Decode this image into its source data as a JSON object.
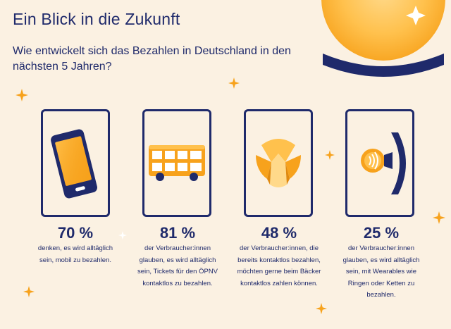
{
  "header": {
    "title": "Ein Blick in die Zukunft",
    "subtitle": "Wie entwickelt sich das Bezahlen in Deutschland in den nächsten 5 Jahren?"
  },
  "stats": [
    {
      "percent": "70 %",
      "text": "denken, es wird alltäglich sein, mobil zu bezahlen.",
      "icon": "smartphone-icon"
    },
    {
      "percent": "81 %",
      "text": "der Verbraucher:innen glauben, es wird alltäglich sein, Tickets für den ÖPNV kontaktlos zu bezahlen.",
      "icon": "bus-icon"
    },
    {
      "percent": "48 %",
      "text": "der Verbraucher:innen, die bereits kontaktlos bezahlen, möchten gerne beim Bäcker kontaktlos zahlen können.",
      "icon": "croissant-icon"
    },
    {
      "percent": "25 %",
      "text": "der Verbraucher:innen glauben, es wird alltäglich sein, mit Wearables wie Ringen oder Ketten zu bezahlen.",
      "icon": "smartwatch-icon"
    }
  ],
  "colors": {
    "background": "#fbf1e2",
    "navy": "#1f2a6b",
    "accent_orange": "#f7a21c",
    "accent_yellow": "#ffc14d"
  }
}
